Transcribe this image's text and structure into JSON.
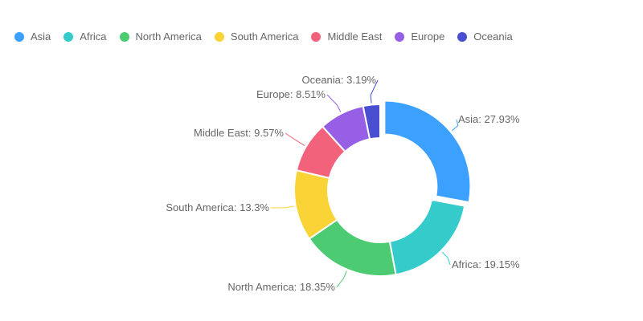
{
  "chart_data": {
    "type": "pie",
    "variant": "donut",
    "title": "",
    "legend_position": "top-left",
    "categories": [
      "Asia",
      "Africa",
      "North America",
      "South America",
      "Middle East",
      "Europe",
      "Oceania"
    ],
    "values": [
      27.93,
      19.15,
      18.35,
      13.3,
      9.57,
      8.51,
      3.19
    ],
    "unit": "%",
    "labels": [
      "Asia: 27.93%",
      "Africa: 19.15%",
      "North America: 18.35%",
      "South America: 13.3%",
      "Middle East: 9.57%",
      "Europe: 8.51%",
      "Oceania: 3.19%"
    ],
    "colors": [
      "#3ba0ff",
      "#36cbcb",
      "#4dcb73",
      "#fad337",
      "#f2637b",
      "#975fe5",
      "#4a4fd1"
    ],
    "highlighted": "Asia"
  }
}
